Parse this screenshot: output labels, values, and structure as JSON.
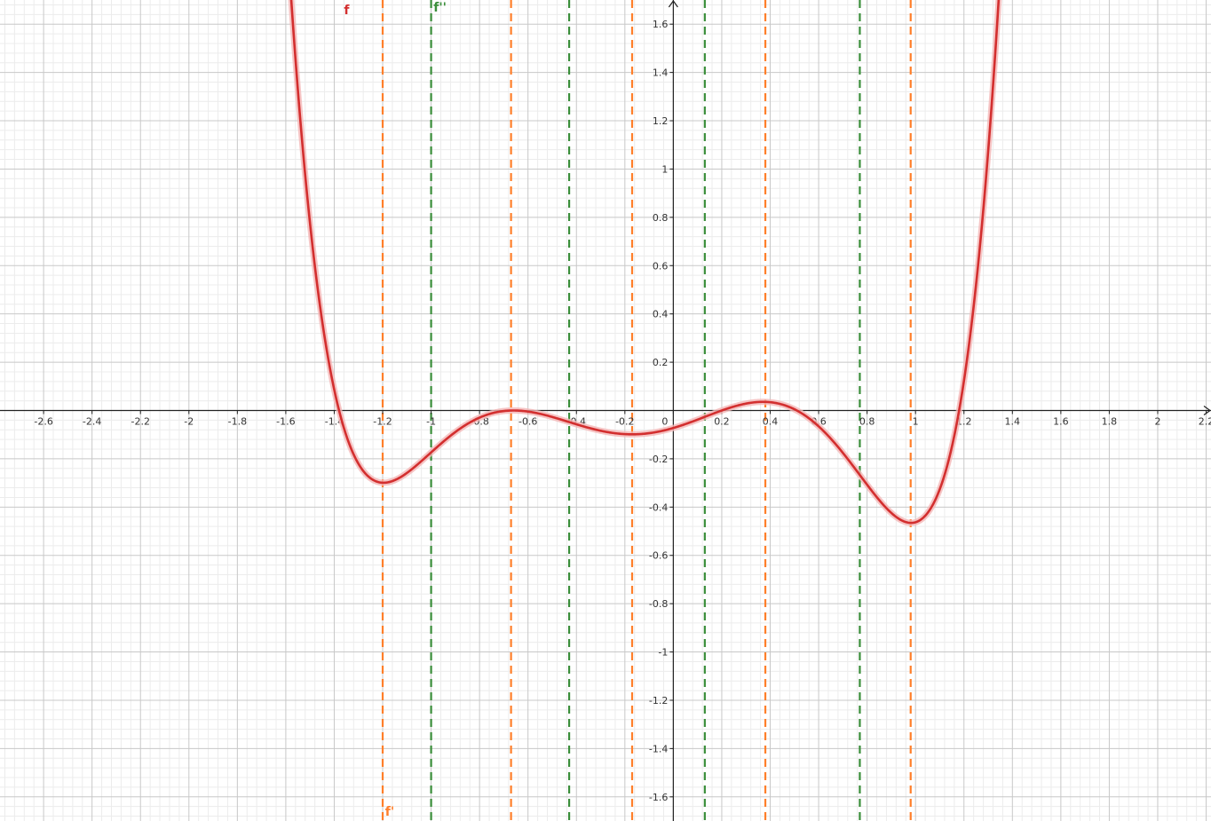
{
  "chart_data": {
    "type": "line",
    "title": "",
    "xlabel": "",
    "ylabel": "",
    "xlim": [
      -2.78,
      2.22
    ],
    "ylim": [
      -1.7,
      1.7
    ],
    "grid": true,
    "x_ticks": [
      "-2.6",
      "-2.4",
      "-2.2",
      "-2",
      "-1.8",
      "-1.6",
      "-1.4",
      "-1.2",
      "-1",
      "-0.8",
      "-0.6",
      "-0.4",
      "-0.2",
      "0",
      "0.2",
      "0.4",
      "0.6",
      "0.8",
      "1",
      "1.2",
      "1.4",
      "1.6",
      "1.8",
      "2",
      "2.2"
    ],
    "y_ticks": [
      "1.6",
      "1.4",
      "1.2",
      "1",
      "0.8",
      "0.6",
      "0.4",
      "0.2",
      "-0.2",
      "-0.4",
      "-0.6",
      "-0.8",
      "-1",
      "-1.2",
      "-1.4",
      "-1.6"
    ],
    "series": [
      {
        "name": "f",
        "color": "#d32f2f",
        "label_pos": [
          -1.36,
          1.66
        ],
        "zeros": [
          -1.38,
          -0.66,
          -0.66,
          0.2,
          0.51,
          1.18
        ]
      }
    ],
    "vertical_lines": [
      {
        "name": "f'",
        "color": "#ff7f2a",
        "label_pos": [
          -1.19,
          -1.66
        ],
        "x": [
          -1.2,
          -0.67,
          -0.17,
          0.38,
          0.98
        ]
      },
      {
        "name": "f''",
        "color": "#3a8e3a",
        "label_pos": [
          -0.99,
          1.67
        ],
        "x": [
          -1.0,
          -0.43,
          0.13,
          0.77
        ]
      }
    ]
  }
}
